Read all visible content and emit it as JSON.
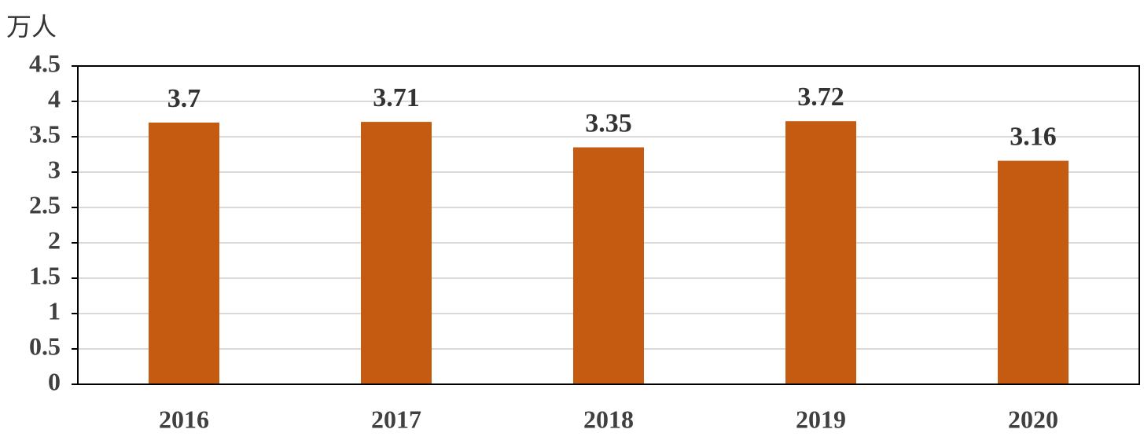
{
  "chart_data": {
    "type": "bar",
    "y_label": "万人",
    "categories": [
      "2016",
      "2017",
      "2018",
      "2019",
      "2020"
    ],
    "values": [
      3.7,
      3.71,
      3.35,
      3.72,
      3.16
    ],
    "color": "#c55a11",
    "ylim": [
      0,
      4.5
    ],
    "yticks": [
      0,
      0.5,
      1,
      1.5,
      2,
      2.5,
      3,
      3.5,
      4,
      4.5
    ],
    "grid": true
  }
}
